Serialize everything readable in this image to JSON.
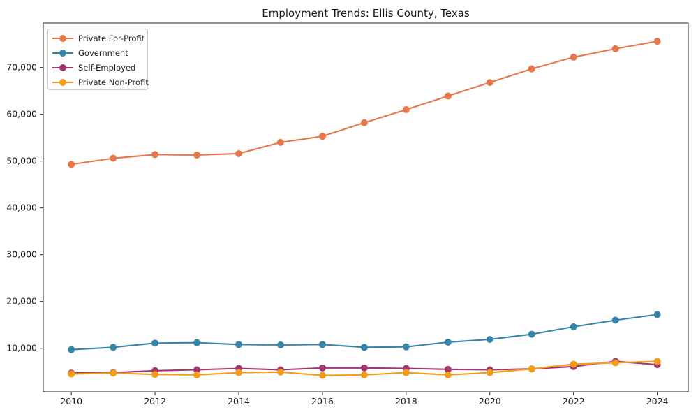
{
  "figure": {
    "title": "Employment Trends: Ellis County, Texas"
  },
  "chart_data": {
    "type": "line",
    "title": "Employment Trends: Ellis County, Texas",
    "xlabel": "",
    "ylabel": "",
    "x": [
      2010,
      2011,
      2012,
      2013,
      2014,
      2015,
      2016,
      2017,
      2018,
      2019,
      2020,
      2021,
      2022,
      2023,
      2024
    ],
    "xticks": [
      2010,
      2012,
      2014,
      2016,
      2018,
      2020,
      2022,
      2024
    ],
    "yticks": [
      10000,
      20000,
      30000,
      40000,
      50000,
      60000,
      70000
    ],
    "xlim": [
      2009.33,
      2024.74
    ],
    "ylim": [
      700,
      79500
    ],
    "grid": false,
    "marker": "circle",
    "legend_position": "upper-left",
    "legend_entries": [
      "Private For-Profit",
      "Government",
      "Self-Employed",
      "Private Non-Profit"
    ],
    "series": [
      {
        "name": "Private For-Profit",
        "color": "#e8764b",
        "values": [
          49300,
          50600,
          51400,
          51300,
          51600,
          54000,
          55300,
          58200,
          61000,
          63900,
          66800,
          69700,
          72200,
          74000,
          75600
        ]
      },
      {
        "name": "Government",
        "color": "#3585a9",
        "values": [
          9700,
          10200,
          11100,
          11200,
          10800,
          10700,
          10800,
          10200,
          10300,
          11300,
          11900,
          13000,
          14600,
          16000,
          17200
        ]
      },
      {
        "name": "Self-Employed",
        "color": "#a23572",
        "values": [
          4700,
          4800,
          5200,
          5400,
          5700,
          5400,
          5800,
          5800,
          5700,
          5500,
          5400,
          5600,
          6100,
          7200,
          6500
        ]
      },
      {
        "name": "Private Non-Profit",
        "color": "#f49c16",
        "values": [
          4500,
          4700,
          4400,
          4300,
          4800,
          4900,
          4200,
          4300,
          4800,
          4300,
          4800,
          5600,
          6600,
          6900,
          7200
        ]
      }
    ],
    "axis_color": "#2a2a2a",
    "legend_border_color": "#cccccc"
  }
}
